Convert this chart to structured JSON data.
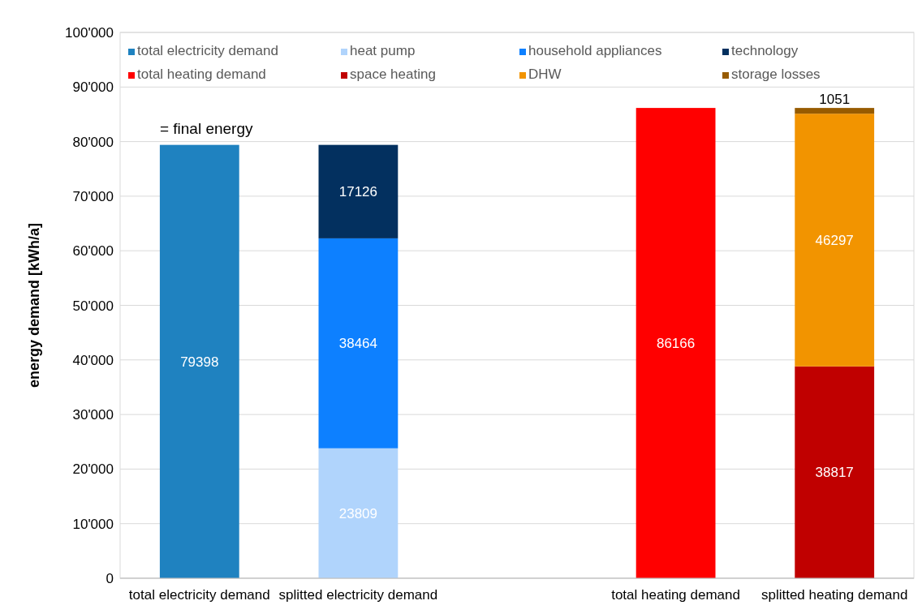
{
  "chart_data": {
    "type": "bar",
    "stacked": true,
    "ylabel": "energy demand [kWh/a]",
    "categories": [
      "total electricity demand",
      "splitted electricity demand",
      null,
      "total heating demand",
      "splitted heating demand"
    ],
    "series": [
      {
        "name": "total electricity demand",
        "color": "#1f82c0",
        "values": [
          79398,
          null,
          null,
          null,
          null
        ]
      },
      {
        "name": "heat pump",
        "color": "#b0d4fc",
        "values": [
          null,
          23809,
          null,
          null,
          null
        ]
      },
      {
        "name": "household appliances",
        "color": "#0d80ff",
        "values": [
          null,
          38464,
          null,
          null,
          null
        ]
      },
      {
        "name": "technology",
        "color": "#03305f",
        "values": [
          null,
          17126,
          null,
          null,
          null
        ]
      },
      {
        "name": "total heating demand",
        "color": "#ff0000",
        "values": [
          null,
          null,
          null,
          86166,
          null
        ]
      },
      {
        "name": "space heating",
        "color": "#c00000",
        "values": [
          null,
          null,
          null,
          null,
          38817
        ]
      },
      {
        "name": "DHW",
        "color": "#f29400",
        "values": [
          null,
          null,
          null,
          null,
          46297
        ]
      },
      {
        "name": "storage losses",
        "color": "#975b00",
        "values": [
          null,
          null,
          null,
          null,
          1051
        ]
      }
    ],
    "ylim": [
      0,
      100000
    ],
    "yticks": [
      0,
      {
        "value": 10000,
        "label": "10'000"
      },
      {
        "value": 20000,
        "label": "20'000"
      },
      {
        "value": 30000,
        "label": "30'000"
      },
      {
        "value": 40000,
        "label": "40'000"
      },
      {
        "value": 50000,
        "label": "50'000"
      },
      {
        "value": 60000,
        "label": "60'000"
      },
      {
        "value": 70000,
        "label": "70'000"
      },
      {
        "value": 80000,
        "label": "80'000"
      },
      {
        "value": 90000,
        "label": "90'000"
      },
      {
        "value": 100000,
        "label": "100'000"
      }
    ],
    "grid": "y",
    "legend": "top",
    "data_labels": true,
    "annotations": [
      "= final energy"
    ]
  }
}
